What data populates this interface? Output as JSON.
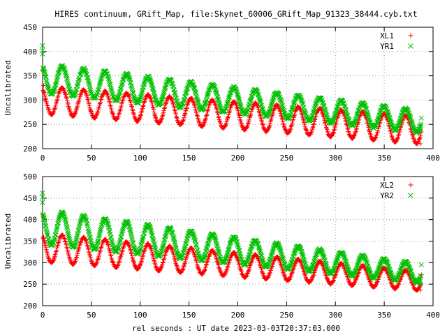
{
  "title": "HIRES continuum, GRift_Map, file:Skynet_60006_GRift_Map_91323_38444.cyb.txt",
  "xlabel": "rel seconds : UT date 2023-03-03T20:37:03.000",
  "colors": {
    "xl": "#ff0000",
    "yr": "#00c000",
    "axis": "#000000",
    "grid": "#a0a0a0"
  },
  "chart_data": [
    {
      "type": "scatter",
      "ylabel": "Uncalibrated",
      "xlim": [
        0,
        400
      ],
      "ylim": [
        200,
        450
      ],
      "xticks": [
        0,
        50,
        100,
        150,
        200,
        250,
        300,
        350,
        400
      ],
      "yticks": [
        200,
        250,
        300,
        350,
        400,
        450
      ],
      "grid": true,
      "legend": "top-right",
      "series": [
        {
          "name": "XL1",
          "marker": "plus",
          "color": "#ff0000",
          "start_outliers": [
            [
              0,
              360
            ],
            [
              1,
              330
            ]
          ],
          "period": 22,
          "trend_start": 300,
          "trend_end": 238,
          "amp_start": 28,
          "amp_end": 28,
          "x_end": 388,
          "end_points": [
            [
              388,
              236
            ],
            [
              387,
              210
            ]
          ]
        },
        {
          "name": "YR1",
          "marker": "cross",
          "color": "#00c000",
          "start_outliers": [
            [
              0,
              412
            ],
            [
              0,
              402
            ],
            [
              0,
              395
            ],
            [
              1,
              362
            ]
          ],
          "period": 22,
          "trend_start": 345,
          "trend_end": 256,
          "amp_start": 30,
          "amp_end": 23,
          "x_end": 388,
          "end_points": [
            [
              388,
              263
            ],
            [
              387,
              236
            ]
          ]
        }
      ]
    },
    {
      "type": "scatter",
      "ylabel": "Uncalibrated",
      "xlim": [
        0,
        400
      ],
      "ylim": [
        200,
        500
      ],
      "xticks": [
        0,
        50,
        100,
        150,
        200,
        250,
        300,
        350,
        400
      ],
      "yticks": [
        200,
        250,
        300,
        350,
        400,
        450,
        500
      ],
      "grid": true,
      "legend": "top-right",
      "series": [
        {
          "name": "XL2",
          "marker": "plus",
          "color": "#ff0000",
          "start_outliers": [
            [
              0,
              412
            ],
            [
              1,
              408
            ],
            [
              1,
              360
            ]
          ],
          "period": 22,
          "trend_start": 335,
          "trend_end": 257,
          "amp_start": 33,
          "amp_end": 22,
          "x_end": 388,
          "end_points": [
            [
              388,
              272
            ],
            [
              387,
              236
            ]
          ]
        },
        {
          "name": "YR2",
          "marker": "cross",
          "color": "#00c000",
          "start_outliers": [
            [
              0,
              462
            ],
            [
              0,
              452
            ],
            [
              0,
              440
            ],
            [
              1,
              400
            ]
          ],
          "period": 22,
          "trend_start": 383,
          "trend_end": 275,
          "amp_start": 40,
          "amp_end": 22,
          "x_end": 388,
          "end_points": [
            [
              388,
              295
            ],
            [
              387,
              250
            ]
          ]
        }
      ]
    }
  ]
}
